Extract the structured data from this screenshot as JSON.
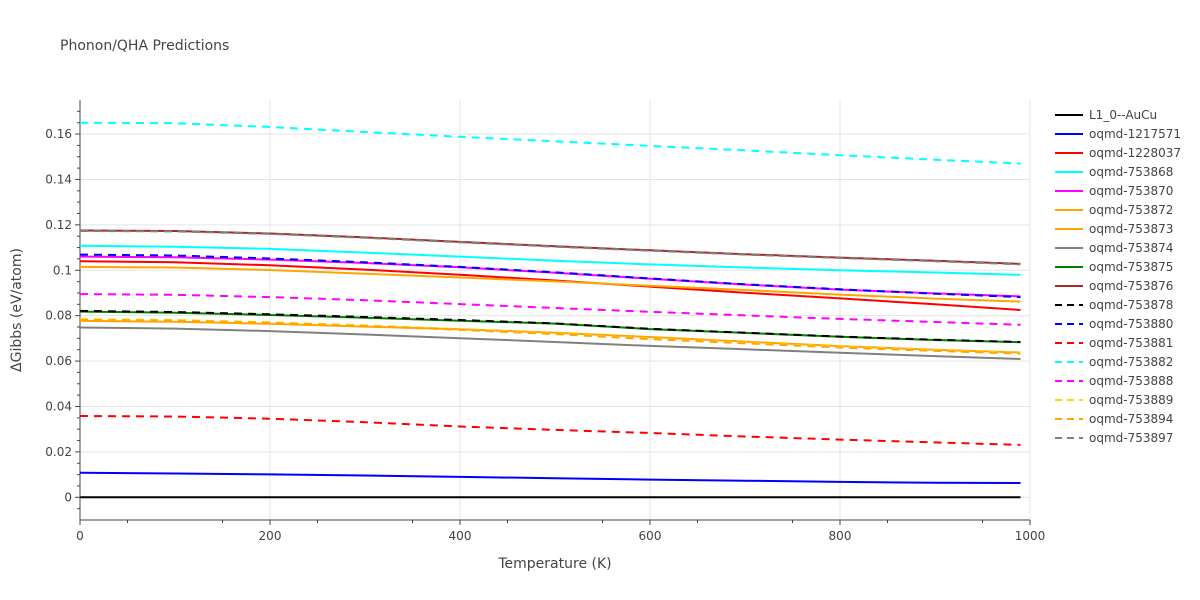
{
  "chart_data": {
    "type": "line",
    "title": "Phonon/QHA Predictions",
    "xlabel": "Temperature (K)",
    "ylabel": "ΔGibbs (eV/atom)",
    "xlim": [
      0,
      1000
    ],
    "ylim": [
      -0.01,
      0.175
    ],
    "x_ticks": [
      0,
      200,
      400,
      600,
      800,
      1000
    ],
    "x_tick_labels": [
      "0",
      "200",
      "400",
      "600",
      "800",
      "1000"
    ],
    "y_ticks": [
      0,
      0.02,
      0.04,
      0.06,
      0.08,
      0.1,
      0.12,
      0.14,
      0.16
    ],
    "y_tick_labels": [
      "0",
      "0.02",
      "0.04",
      "0.06",
      "0.08",
      "0.1",
      "0.12",
      "0.14",
      "0.16"
    ],
    "grid": true,
    "legend_position": "right",
    "x": [
      0,
      100,
      200,
      300,
      400,
      500,
      600,
      700,
      800,
      900,
      990
    ],
    "series": [
      {
        "name": "L1_0--AuCu",
        "color": "#000000",
        "dash": "solid",
        "values": [
          0,
          0,
          0,
          0,
          0,
          0,
          0,
          0,
          0,
          0,
          0
        ]
      },
      {
        "name": "oqmd-1217571",
        "color": "#0000ff",
        "dash": "solid",
        "values": [
          0.0108,
          0.0105,
          0.0101,
          0.0096,
          0.009,
          0.0084,
          0.0078,
          0.0073,
          0.0068,
          0.0064,
          0.0063
        ]
      },
      {
        "name": "oqmd-1228037",
        "color": "#ff0000",
        "dash": "solid",
        "values": [
          0.104,
          0.1035,
          0.1022,
          0.1003,
          0.098,
          0.0955,
          0.0928,
          0.0901,
          0.0876,
          0.085,
          0.0825
        ]
      },
      {
        "name": "oqmd-753868",
        "color": "#00ffff",
        "dash": "solid",
        "values": [
          0.1108,
          0.1104,
          0.1094,
          0.1078,
          0.106,
          0.1042,
          0.1026,
          0.1012,
          0.1,
          0.099,
          0.098
        ]
      },
      {
        "name": "oqmd-753870",
        "color": "#ff00ff",
        "dash": "solid",
        "values": [
          0.106,
          0.1057,
          0.1047,
          0.1032,
          0.1013,
          0.0989,
          0.0963,
          0.0937,
          0.0915,
          0.0898,
          0.0885
        ]
      },
      {
        "name": "oqmd-753872",
        "color": "#ffa500",
        "dash": "solid",
        "values": [
          0.1015,
          0.1012,
          0.1001,
          0.0985,
          0.0968,
          0.0951,
          0.0932,
          0.0913,
          0.0893,
          0.0875,
          0.0862
        ]
      },
      {
        "name": "oqmd-753873",
        "color": "#ffa500",
        "dash": "solid",
        "values": [
          0.0777,
          0.0773,
          0.0764,
          0.0752,
          0.074,
          0.0725,
          0.0706,
          0.0686,
          0.0666,
          0.065,
          0.0638
        ]
      },
      {
        "name": "oqmd-753874",
        "color": "#808080",
        "dash": "solid",
        "values": [
          0.0748,
          0.0743,
          0.0732,
          0.0717,
          0.0701,
          0.0684,
          0.0667,
          0.0652,
          0.0637,
          0.0622,
          0.0609
        ]
      },
      {
        "name": "oqmd-753875",
        "color": "#008000",
        "dash": "solid",
        "values": [
          0.0818,
          0.0813,
          0.0803,
          0.0791,
          0.0778,
          0.0765,
          0.0741,
          0.0724,
          0.0707,
          0.0693,
          0.0683
        ]
      },
      {
        "name": "oqmd-753876",
        "color": "#a52a2a",
        "dash": "solid",
        "values": [
          0.1175,
          0.1173,
          0.1162,
          0.1145,
          0.1125,
          0.1106,
          0.1088,
          0.1071,
          0.1056,
          0.1042,
          0.1028
        ]
      },
      {
        "name": "oqmd-753878",
        "color": "#000000",
        "dash": "dash",
        "values": [
          0.0821,
          0.0816,
          0.0806,
          0.0794,
          0.0781,
          0.0766,
          0.0742,
          0.0725,
          0.0708,
          0.0694,
          0.0684
        ]
      },
      {
        "name": "oqmd-753880",
        "color": "#0000ff",
        "dash": "dash",
        "values": [
          0.1069,
          0.1065,
          0.1052,
          0.1035,
          0.1015,
          0.0991,
          0.0964,
          0.0938,
          0.0916,
          0.0897,
          0.0882
        ]
      },
      {
        "name": "oqmd-753881",
        "color": "#ff0000",
        "dash": "dash",
        "values": [
          0.0358,
          0.0356,
          0.0346,
          0.0331,
          0.0312,
          0.0297,
          0.0283,
          0.0268,
          0.0254,
          0.0242,
          0.0231
        ]
      },
      {
        "name": "oqmd-753882",
        "color": "#00ffff",
        "dash": "dash",
        "values": [
          0.165,
          0.1648,
          0.1631,
          0.1609,
          0.1588,
          0.1568,
          0.1548,
          0.1528,
          0.1507,
          0.1487,
          0.147
        ]
      },
      {
        "name": "oqmd-753888",
        "color": "#ff00ff",
        "dash": "dash",
        "values": [
          0.0895,
          0.0892,
          0.0882,
          0.0868,
          0.0851,
          0.0834,
          0.0817,
          0.0801,
          0.0786,
          0.0772,
          0.076
        ]
      },
      {
        "name": "oqmd-753889",
        "color": "#ffd700",
        "dash": "dash",
        "values": [
          0.0785,
          0.0781,
          0.0771,
          0.0757,
          0.0741,
          0.0721,
          0.0699,
          0.068,
          0.0663,
          0.0648,
          0.0636
        ]
      },
      {
        "name": "oqmd-753894",
        "color": "#ffa500",
        "dash": "dash",
        "values": [
          0.0781,
          0.0778,
          0.0768,
          0.0754,
          0.0738,
          0.0719,
          0.0697,
          0.0678,
          0.066,
          0.0645,
          0.0633
        ]
      },
      {
        "name": "oqmd-753897",
        "color": "#808080",
        "dash": "dash",
        "values": [
          0.1173,
          0.1171,
          0.116,
          0.1143,
          0.1123,
          0.1104,
          0.1086,
          0.1069,
          0.1054,
          0.104,
          0.1026
        ]
      }
    ]
  }
}
